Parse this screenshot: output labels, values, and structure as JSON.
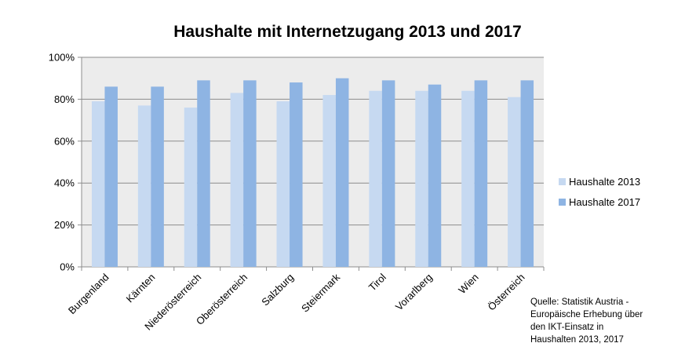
{
  "chart_data": {
    "type": "bar",
    "title": "Haushalte mit Internetzugang 2013 und 2017",
    "categories": [
      "Burgenland",
      "Kärnten",
      "Niederösterreich",
      "Oberösterreich",
      "Salzburg",
      "Steiermark",
      "Tirol",
      "Vorarlberg",
      "Wien",
      "Österreich"
    ],
    "series": [
      {
        "name": "Haushalte 2013",
        "color": "#c6d9f1",
        "values": [
          79,
          77,
          76,
          83,
          79,
          82,
          84,
          84,
          84,
          81
        ]
      },
      {
        "name": "Haushalte 2017",
        "color": "#8eb4e3",
        "values": [
          86,
          86,
          89,
          89,
          88,
          90,
          89,
          87,
          89,
          89
        ]
      }
    ],
    "ylim": [
      0,
      100
    ],
    "yticks": [
      "0%",
      "20%",
      "40%",
      "60%",
      "80%",
      "100%"
    ],
    "ytick_values": [
      0,
      20,
      40,
      60,
      80,
      100
    ],
    "grid": true,
    "legend_position": "right",
    "plot_background": "#ececec"
  },
  "source_note": "Quelle: Statistik Austria -\nEuropäische Erhebung über\nden IKT-Einsatz in\nHaushalten 2013, 2017"
}
